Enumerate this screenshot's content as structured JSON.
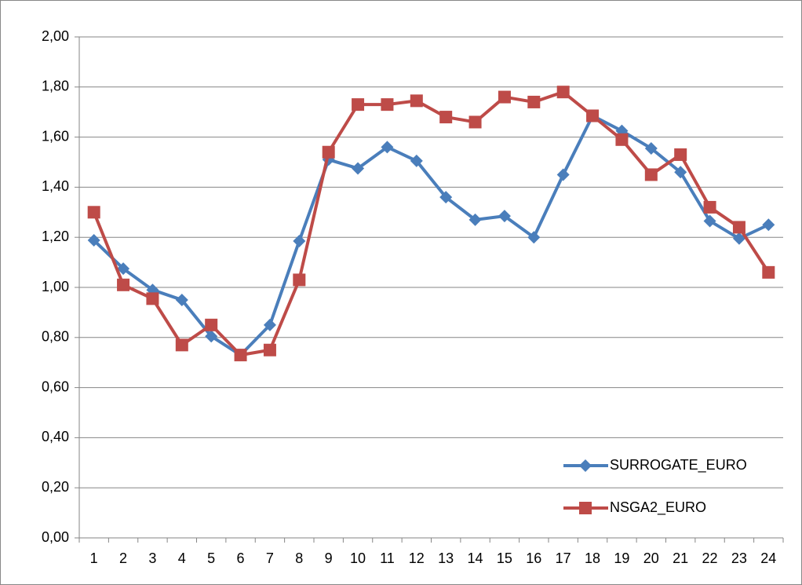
{
  "chart_data": {
    "type": "line",
    "categories": [
      "1",
      "2",
      "3",
      "4",
      "5",
      "6",
      "7",
      "8",
      "9",
      "10",
      "11",
      "12",
      "13",
      "14",
      "15",
      "16",
      "17",
      "18",
      "19",
      "20",
      "21",
      "22",
      "23",
      "24"
    ],
    "series": [
      {
        "name": "SURROGATE_EURO",
        "color": "#4a7ebb",
        "marker": "diamond",
        "values": [
          1.188,
          1.075,
          0.99,
          0.95,
          0.805,
          0.73,
          0.85,
          1.185,
          1.51,
          1.475,
          1.56,
          1.505,
          1.36,
          1.27,
          1.285,
          1.2,
          1.45,
          1.685,
          1.625,
          1.555,
          1.46,
          1.265,
          1.195,
          1.25
        ]
      },
      {
        "name": "NSGA2_EURO",
        "color": "#be4b48",
        "marker": "square",
        "values": [
          1.3,
          1.01,
          0.955,
          0.77,
          0.85,
          0.73,
          0.75,
          1.03,
          1.54,
          1.73,
          1.73,
          1.745,
          1.68,
          1.66,
          1.76,
          1.74,
          1.78,
          1.685,
          1.59,
          1.45,
          1.53,
          1.32,
          1.24,
          1.06
        ]
      }
    ],
    "ylim": [
      0,
      2
    ],
    "yticks": [
      {
        "value": 0,
        "label": "0,00"
      },
      {
        "value": 0.2,
        "label": "0,20"
      },
      {
        "value": 0.4,
        "label": "0,40"
      },
      {
        "value": 0.6,
        "label": "0,60"
      },
      {
        "value": 0.8,
        "label": "0,80"
      },
      {
        "value": 1,
        "label": "1,00"
      },
      {
        "value": 1.2,
        "label": "1,20"
      },
      {
        "value": 1.4,
        "label": "1,40"
      },
      {
        "value": 1.6,
        "label": "1,60"
      },
      {
        "value": 1.8,
        "label": "1,80"
      },
      {
        "value": 2,
        "label": "2,00"
      }
    ],
    "grid": true,
    "legend": "lower right"
  }
}
